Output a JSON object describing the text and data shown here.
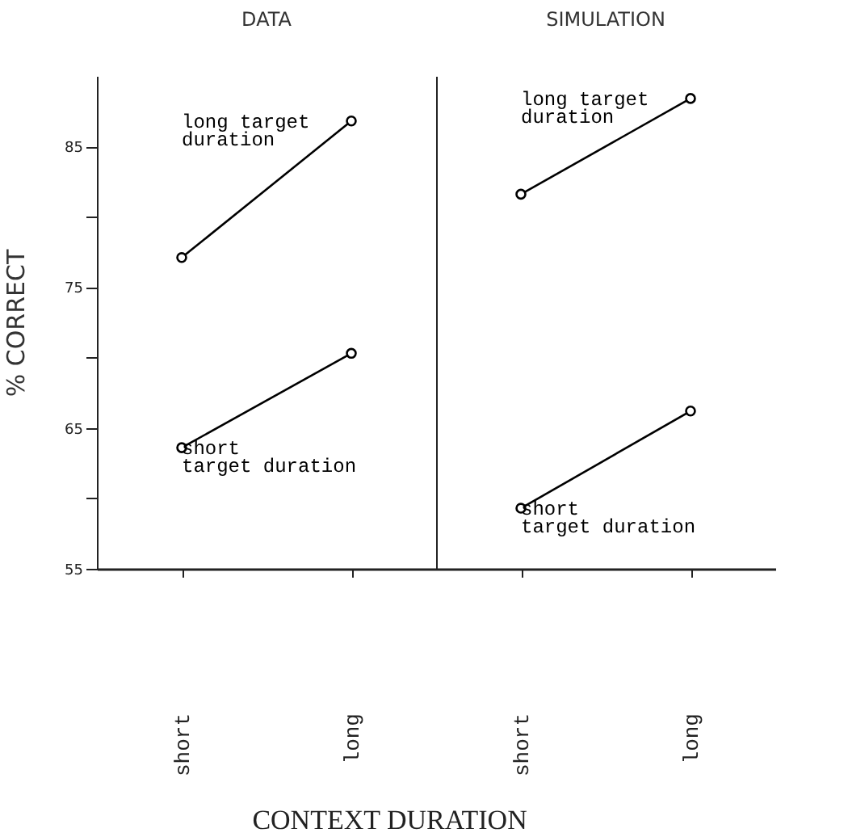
{
  "chart_data": [
    {
      "type": "line",
      "title": "DATA",
      "ylabel": "% CORRECT",
      "xlabel": "CONTEXT DURATION",
      "categories": [
        "short",
        "long"
      ],
      "series": [
        {
          "name": "long target duration",
          "color": "#000000",
          "values": [
            77.1,
            86.8
          ]
        },
        {
          "name": "short target duration",
          "color": "#000000",
          "values": [
            63.6,
            70.3
          ]
        }
      ],
      "ylim": [
        55,
        90
      ],
      "yticks": [
        55,
        {
          "value": 60,
          "label": null
        },
        65,
        {
          "value": 70,
          "label": null
        },
        75,
        {
          "value": 80,
          "label": null
        },
        85
      ],
      "marker": "circle",
      "line_style": "solid"
    },
    {
      "type": "line",
      "title": "SIMULATION",
      "categories": [
        "short",
        "long"
      ],
      "series": [
        {
          "name": "long target duration",
          "color": "#000000",
          "values": [
            81.6,
            88.4
          ]
        },
        {
          "name": "short target duration",
          "color": "#000000",
          "values": [
            59.3,
            66.2
          ]
        }
      ],
      "ylim": [
        55,
        90
      ],
      "tick_labels": "x",
      "marker": "circle",
      "line_style": "solid"
    }
  ]
}
